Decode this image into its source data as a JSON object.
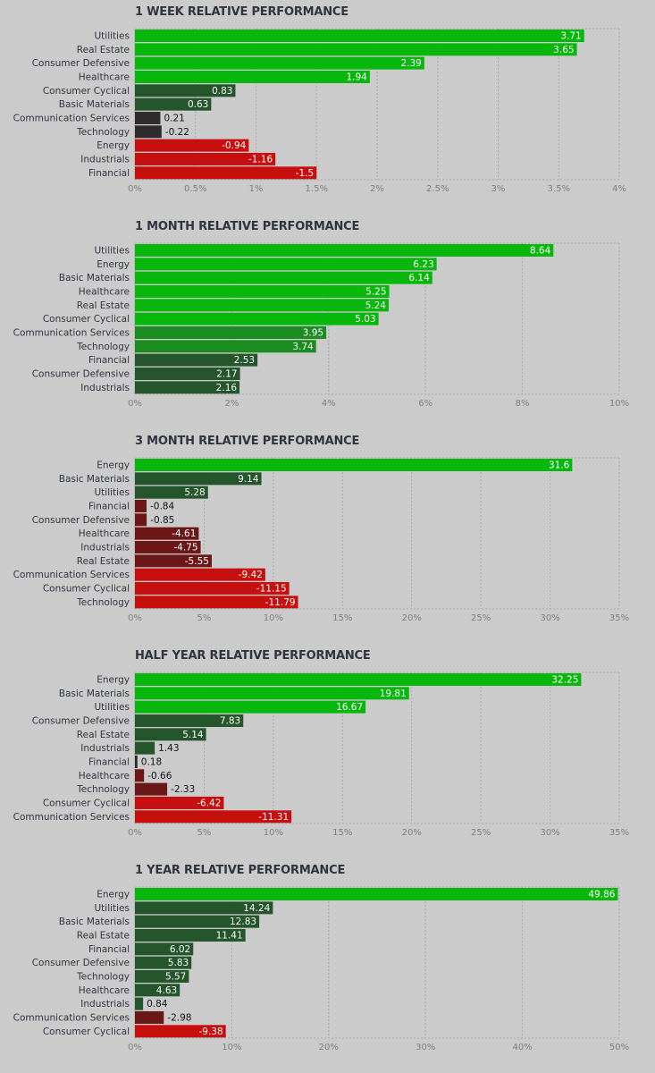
{
  "chart_data": [
    {
      "type": "bar",
      "title": "1 WEEK RELATIVE PERFORMANCE",
      "categories": [
        "Utilities",
        "Real Estate",
        "Consumer Defensive",
        "Healthcare",
        "Consumer Cyclical",
        "Basic Materials",
        "Communication Services",
        "Technology",
        "Energy",
        "Industrials",
        "Financial"
      ],
      "values": [
        3.71,
        3.65,
        2.39,
        1.94,
        0.83,
        0.63,
        0.21,
        -0.22,
        -0.94,
        -1.16,
        -1.5
      ],
      "value_labels": [
        "3.71",
        "3.65",
        "2.39",
        "1.94",
        "0.83",
        "0.63",
        "0.21",
        "-0.22",
        "-0.94",
        "-1.16",
        "-1.5"
      ],
      "xlim": [
        0,
        4
      ],
      "tick_labels": [
        "0%",
        "0.5%",
        "1%",
        "1.5%",
        "2%",
        "2.5%",
        "3%",
        "3.5%",
        "4%"
      ]
    },
    {
      "type": "bar",
      "title": "1 MONTH RELATIVE PERFORMANCE",
      "categories": [
        "Utilities",
        "Energy",
        "Basic Materials",
        "Healthcare",
        "Real Estate",
        "Consumer Cyclical",
        "Communication Services",
        "Technology",
        "Financial",
        "Consumer Defensive",
        "Industrials"
      ],
      "values": [
        8.64,
        6.23,
        6.14,
        5.25,
        5.24,
        5.03,
        3.95,
        3.74,
        2.53,
        2.17,
        2.16
      ],
      "value_labels": [
        "8.64",
        "6.23",
        "6.14",
        "5.25",
        "5.24",
        "5.03",
        "3.95",
        "3.74",
        "2.53",
        "2.17",
        "2.16"
      ],
      "xlim": [
        0,
        10
      ],
      "tick_labels": [
        "0%",
        "2%",
        "4%",
        "6%",
        "8%",
        "10%"
      ]
    },
    {
      "type": "bar",
      "title": "3 MONTH RELATIVE PERFORMANCE",
      "categories": [
        "Energy",
        "Basic Materials",
        "Utilities",
        "Financial",
        "Consumer Defensive",
        "Healthcare",
        "Industrials",
        "Real Estate",
        "Communication Services",
        "Consumer Cyclical",
        "Technology"
      ],
      "values": [
        31.6,
        9.14,
        5.28,
        -0.84,
        -0.85,
        -4.61,
        -4.75,
        -5.55,
        -9.42,
        -11.15,
        -11.79
      ],
      "value_labels": [
        "31.6",
        "9.14",
        "5.28",
        "-0.84",
        "-0.85",
        "-4.61",
        "-4.75",
        "-5.55",
        "-9.42",
        "-11.15",
        "-11.79"
      ],
      "xlim": [
        0,
        35
      ],
      "tick_labels": [
        "0%",
        "5%",
        "10%",
        "15%",
        "20%",
        "25%",
        "30%",
        "35%"
      ]
    },
    {
      "type": "bar",
      "title": "HALF YEAR RELATIVE PERFORMANCE",
      "categories": [
        "Energy",
        "Basic Materials",
        "Utilities",
        "Consumer Defensive",
        "Real Estate",
        "Industrials",
        "Financial",
        "Healthcare",
        "Technology",
        "Consumer Cyclical",
        "Communication Services"
      ],
      "values": [
        32.25,
        19.81,
        16.67,
        7.83,
        5.14,
        1.43,
        0.18,
        -0.66,
        -2.33,
        -6.42,
        -11.31
      ],
      "value_labels": [
        "32.25",
        "19.81",
        "16.67",
        "7.83",
        "5.14",
        "1.43",
        "0.18",
        "-0.66",
        "-2.33",
        "-6.42",
        "-11.31"
      ],
      "xlim": [
        0,
        35
      ],
      "tick_labels": [
        "0%",
        "5%",
        "10%",
        "15%",
        "20%",
        "25%",
        "30%",
        "35%"
      ]
    },
    {
      "type": "bar",
      "title": "1 YEAR RELATIVE PERFORMANCE",
      "categories": [
        "Energy",
        "Utilities",
        "Basic Materials",
        "Real Estate",
        "Financial",
        "Consumer Defensive",
        "Technology",
        "Healthcare",
        "Industrials",
        "Communication Services",
        "Consumer Cyclical"
      ],
      "values": [
        49.86,
        14.24,
        12.83,
        11.41,
        6.02,
        5.83,
        5.57,
        4.63,
        0.84,
        -2.98,
        -9.38
      ],
      "value_labels": [
        "49.86",
        "14.24",
        "12.83",
        "11.41",
        "6.02",
        "5.83",
        "5.57",
        "4.63",
        "0.84",
        "-2.98",
        "-9.38"
      ],
      "xlim": [
        0,
        50
      ],
      "tick_labels": [
        "0%",
        "10%",
        "20%",
        "30%",
        "40%",
        "50%"
      ]
    }
  ],
  "colors": {
    "strong_green": "#08b70b",
    "mid_green": "#1a8c20",
    "dark_green": "#24552b",
    "neutral": "#2e2b2c",
    "dark_red": "#6b1717",
    "strong_red": "#c80f0f",
    "grid": "#a9a9a9",
    "background": "#cbcbcb"
  }
}
